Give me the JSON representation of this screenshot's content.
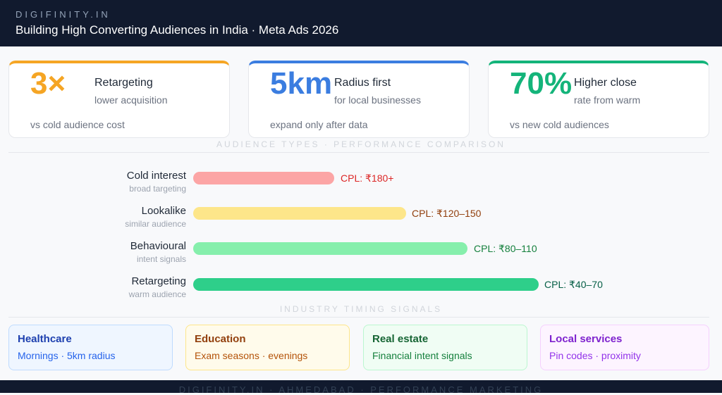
{
  "header": {
    "brand": "DIGIFINITY.IN",
    "title": "Building High Converting Audiences in India · Meta Ads 2026"
  },
  "stats": [
    {
      "big": "3×",
      "title": "Retargeting",
      "sub": "lower acquisition",
      "caption": "vs cold audience cost"
    },
    {
      "big": "5km",
      "title": "Radius first",
      "sub": "for local businesses",
      "caption": "expand only after data"
    },
    {
      "big": "70%",
      "title": "Higher close",
      "sub": "rate from warm",
      "caption": "vs new cold audiences"
    }
  ],
  "comparison": {
    "heading": "AUDIENCE TYPES · PERFORMANCE COMPARISON",
    "rows": [
      {
        "name": "Cold interest",
        "sub": "broad targeting",
        "label": "CPL: ₹180+"
      },
      {
        "name": "Lookalike",
        "sub": "similar audience",
        "label": "CPL: ₹120–150"
      },
      {
        "name": "Behavioural",
        "sub": "intent signals",
        "label": "CPL: ₹80–110"
      },
      {
        "name": "Retargeting",
        "sub": "warm audience",
        "label": "CPL: ₹40–70"
      }
    ]
  },
  "timing": {
    "heading": "INDUSTRY TIMING SIGNALS",
    "cards": [
      {
        "title": "Healthcare",
        "text": "Mornings · 5km radius"
      },
      {
        "title": "Education",
        "text": "Exam seasons · evenings"
      },
      {
        "title": "Real estate",
        "text": "Financial intent signals"
      },
      {
        "title": "Local services",
        "text": "Pin codes · proximity"
      }
    ]
  },
  "footer": {
    "text": "DIGIFINITY.IN · AHMEDABAD · PERFORMANCE MARKETING"
  }
}
